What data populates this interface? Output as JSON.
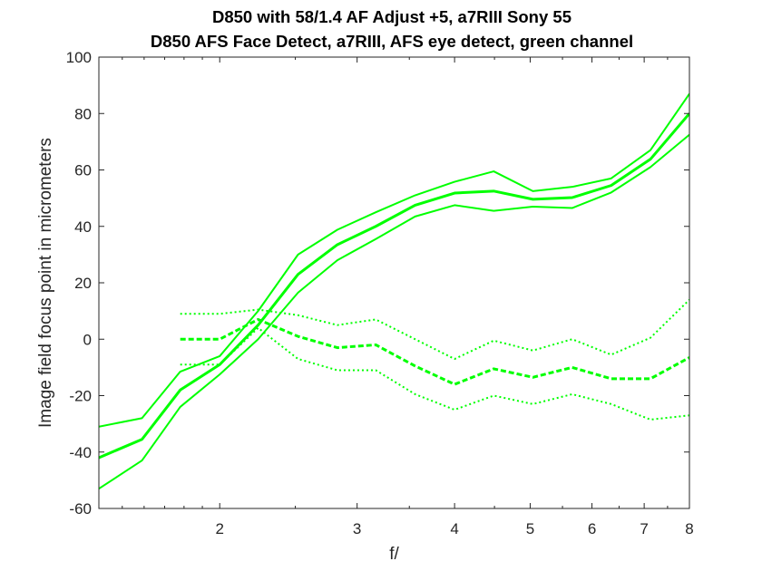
{
  "chart_data": {
    "type": "line",
    "title": [
      "D850 with 58/1.4 AF Adjust +5, a7RIII Sony 55",
      "D850 AFS Face Detect, a7RIII, AFS eye detect, green channel"
    ],
    "xlabel": "f/",
    "ylabel": "Image field focus point in micrometers",
    "xscale": "log",
    "xlim": [
      1.4,
      8
    ],
    "ylim": [
      -60,
      100
    ],
    "xticks": [
      "2",
      "3",
      "4",
      "5",
      "6",
      "7",
      "8"
    ],
    "yticks": [
      "100",
      "80",
      "60",
      "40",
      "20",
      "0",
      "-20",
      "-40",
      "-60"
    ],
    "grid": false,
    "legend": "none",
    "colors": {
      "series": "#00ff00",
      "axes": "#262626"
    },
    "series": [
      {
        "line_style": "solid",
        "line_weight": "thick",
        "points": [
          [
            1.4,
            -42
          ],
          [
            1.59,
            -35.5
          ],
          [
            1.78,
            -18
          ],
          [
            2.0,
            -9
          ],
          [
            2.24,
            5
          ],
          [
            2.52,
            23
          ],
          [
            2.83,
            33.5
          ],
          [
            3.17,
            40
          ],
          [
            3.56,
            47.5
          ],
          [
            4.0,
            51.8
          ],
          [
            4.49,
            52.5
          ],
          [
            5.04,
            49.6
          ],
          [
            5.66,
            50.2
          ],
          [
            6.35,
            54.5
          ],
          [
            7.13,
            63.8
          ],
          [
            8.0,
            80
          ]
        ]
      },
      {
        "line_style": "solid",
        "line_weight": "thin",
        "points": [
          [
            1.4,
            -31
          ],
          [
            1.59,
            -28
          ],
          [
            1.78,
            -11.5
          ],
          [
            2.0,
            -6
          ],
          [
            2.24,
            10
          ],
          [
            2.52,
            30
          ],
          [
            2.83,
            38.8
          ],
          [
            3.17,
            45
          ],
          [
            3.56,
            51
          ],
          [
            4.0,
            55.8
          ],
          [
            4.49,
            59.5
          ],
          [
            5.04,
            52.5
          ],
          [
            5.66,
            54
          ],
          [
            6.35,
            57
          ],
          [
            7.13,
            67
          ],
          [
            8.0,
            87
          ]
        ]
      },
      {
        "line_style": "solid",
        "line_weight": "thin",
        "points": [
          [
            1.4,
            -53
          ],
          [
            1.59,
            -43
          ],
          [
            1.78,
            -24
          ],
          [
            2.0,
            -12.5
          ],
          [
            2.24,
            0
          ],
          [
            2.52,
            16.5
          ],
          [
            2.83,
            28
          ],
          [
            3.17,
            35.5
          ],
          [
            3.56,
            43.5
          ],
          [
            4.0,
            47.5
          ],
          [
            4.49,
            45.5
          ],
          [
            5.04,
            47
          ],
          [
            5.66,
            46.5
          ],
          [
            6.35,
            52
          ],
          [
            7.13,
            61
          ],
          [
            8.0,
            72.5
          ]
        ]
      },
      {
        "line_style": "dashed",
        "line_weight": "thick",
        "points": [
          [
            1.78,
            0
          ],
          [
            2.0,
            0
          ],
          [
            2.24,
            7
          ],
          [
            2.52,
            1
          ],
          [
            2.83,
            -3
          ],
          [
            3.17,
            -2
          ],
          [
            3.56,
            -9.5
          ],
          [
            4.0,
            -16
          ],
          [
            4.49,
            -10.5
          ],
          [
            5.04,
            -13.5
          ],
          [
            5.66,
            -10
          ],
          [
            6.35,
            -14
          ],
          [
            7.13,
            -14
          ],
          [
            8.0,
            -6.5
          ]
        ]
      },
      {
        "line_style": "dotted",
        "line_weight": "thin",
        "points": [
          [
            1.78,
            9
          ],
          [
            2.0,
            9
          ],
          [
            2.24,
            10.5
          ],
          [
            2.52,
            8.5
          ],
          [
            2.83,
            5
          ],
          [
            3.17,
            7
          ],
          [
            3.56,
            0
          ],
          [
            4.0,
            -7
          ],
          [
            4.49,
            -0.5
          ],
          [
            5.04,
            -4
          ],
          [
            5.66,
            0
          ],
          [
            6.35,
            -5.5
          ],
          [
            7.13,
            0.5
          ],
          [
            8.0,
            14
          ]
        ]
      },
      {
        "line_style": "dotted",
        "line_weight": "thin",
        "points": [
          [
            1.78,
            -9
          ],
          [
            2.0,
            -9
          ],
          [
            2.24,
            4
          ],
          [
            2.52,
            -7
          ],
          [
            2.83,
            -11
          ],
          [
            3.17,
            -11
          ],
          [
            3.56,
            -19.5
          ],
          [
            4.0,
            -25
          ],
          [
            4.49,
            -20
          ],
          [
            5.04,
            -23
          ],
          [
            5.66,
            -19.5
          ],
          [
            6.35,
            -23
          ],
          [
            7.13,
            -28.5
          ],
          [
            8.0,
            -27
          ]
        ]
      }
    ]
  }
}
